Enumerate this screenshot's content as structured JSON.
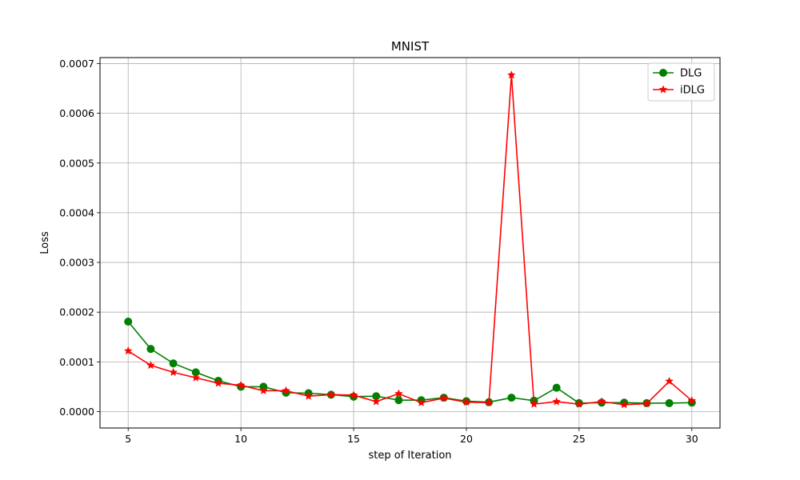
{
  "chart_data": {
    "type": "line",
    "title": "MNIST",
    "xlabel": "step of Iteration",
    "ylabel": "Loss",
    "xlim": [
      3.75,
      31.25
    ],
    "ylim": [
      -3.3e-05,
      0.000712
    ],
    "xticks": [
      5,
      10,
      15,
      20,
      25,
      30
    ],
    "yticks": [
      0.0,
      0.0001,
      0.0002,
      0.0003,
      0.0004,
      0.0005,
      0.0006,
      0.0007
    ],
    "ytick_labels": [
      "0.0000",
      "0.0001",
      "0.0002",
      "0.0003",
      "0.0004",
      "0.0005",
      "0.0006",
      "0.0007"
    ],
    "grid": true,
    "legend_position": "top-right",
    "x": [
      5,
      6,
      7,
      8,
      9,
      10,
      11,
      12,
      13,
      14,
      15,
      16,
      17,
      18,
      19,
      20,
      21,
      22,
      23,
      24,
      25,
      26,
      27,
      28,
      29,
      30
    ],
    "series": [
      {
        "name": "DLG",
        "color": "#008000",
        "marker": "circle",
        "values": [
          0.000181,
          0.000126,
          9.7e-05,
          7.9e-05,
          6.2e-05,
          5e-05,
          5e-05,
          3.8e-05,
          3.7e-05,
          3.4e-05,
          3e-05,
          3.1e-05,
          2.3e-05,
          2.3e-05,
          2.8e-05,
          2.1e-05,
          1.9e-05,
          2.8e-05,
          2.2e-05,
          4.8e-05,
          1.7e-05,
          1.8e-05,
          1.8e-05,
          1.7e-05,
          1.7e-05,
          1.8e-05
        ]
      },
      {
        "name": "iDLG",
        "color": "#ff0000",
        "marker": "star",
        "values": [
          0.000122,
          9.3e-05,
          7.9e-05,
          6.8e-05,
          5.7e-05,
          5.3e-05,
          4.2e-05,
          4.2e-05,
          3.1e-05,
          3.4e-05,
          3.3e-05,
          2e-05,
          3.6e-05,
          1.8e-05,
          2.7e-05,
          1.9e-05,
          1.8e-05,
          0.000677,
          1.5e-05,
          2e-05,
          1.5e-05,
          2e-05,
          1.4e-05,
          1.6e-05,
          6.1e-05,
          2.2e-05
        ]
      }
    ]
  }
}
